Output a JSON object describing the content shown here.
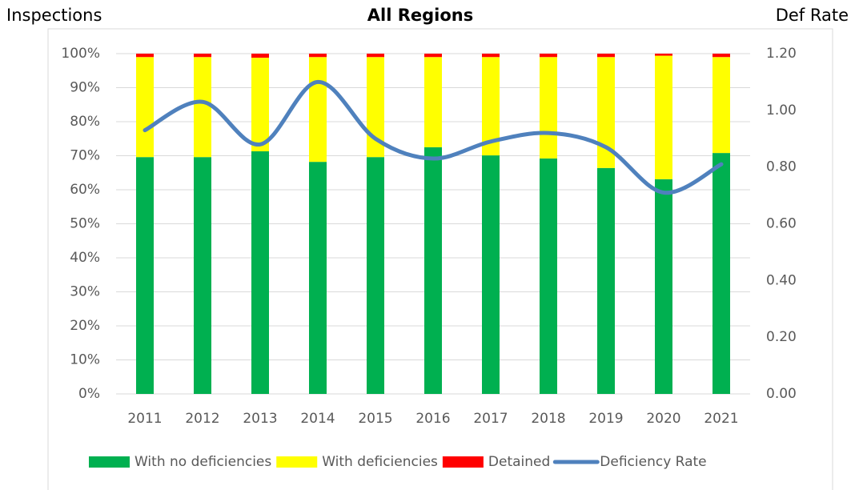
{
  "chart_data": {
    "type": "bar",
    "stacked": true,
    "title": "All Regions",
    "y_label": "Inspections",
    "y2_label": "Def Rate",
    "categories": [
      "2011",
      "2012",
      "2013",
      "2014",
      "2015",
      "2016",
      "2017",
      "2018",
      "2019",
      "2020",
      "2021"
    ],
    "series": [
      {
        "name": "With no deficiencies",
        "color": "#00b050",
        "type": "bar",
        "values": [
          69.6,
          69.6,
          71.3,
          68.2,
          69.6,
          72.5,
          70.1,
          69.2,
          66.4,
          63.1,
          70.8
        ]
      },
      {
        "name": "With deficiencies",
        "color": "#ffff00",
        "type": "bar",
        "values": [
          29.4,
          29.4,
          27.5,
          30.8,
          29.4,
          26.5,
          28.9,
          29.8,
          32.6,
          36.3,
          28.2
        ]
      },
      {
        "name": "Detained",
        "color": "#ff0000",
        "type": "bar",
        "values": [
          1.0,
          1.0,
          1.2,
          1.0,
          1.0,
          1.0,
          1.0,
          1.0,
          1.0,
          0.6,
          1.0
        ]
      },
      {
        "name": "Deficiency Rate",
        "color": "#4f81bd",
        "type": "line",
        "axis": "y2",
        "values": [
          0.93,
          1.03,
          0.88,
          1.1,
          0.9,
          0.83,
          0.89,
          0.92,
          0.87,
          0.71,
          0.81
        ]
      }
    ],
    "ylim": [
      0,
      100
    ],
    "yticks": [
      {
        "value": 0,
        "label": "0%"
      },
      {
        "value": 10,
        "label": "10%"
      },
      {
        "value": 20,
        "label": "20%"
      },
      {
        "value": 30,
        "label": "30%"
      },
      {
        "value": 40,
        "label": "40%"
      },
      {
        "value": 50,
        "label": "50%"
      },
      {
        "value": 60,
        "label": "60%"
      },
      {
        "value": 70,
        "label": "70%"
      },
      {
        "value": 80,
        "label": "80%"
      },
      {
        "value": 90,
        "label": "90%"
      },
      {
        "value": 100,
        "label": "100%"
      }
    ],
    "y2lim": [
      0,
      1.2
    ],
    "y2ticks": [
      {
        "value": 0,
        "label": "0.00"
      },
      {
        "value": 0.2,
        "label": "0.20"
      },
      {
        "value": 0.4,
        "label": "0.40"
      },
      {
        "value": 0.6,
        "label": "0.60"
      },
      {
        "value": 0.8,
        "label": "0.80"
      },
      {
        "value": 1.0,
        "label": "1.00"
      },
      {
        "value": 1.2,
        "label": "1.20"
      }
    ],
    "grid": true,
    "legend": "bottom"
  }
}
